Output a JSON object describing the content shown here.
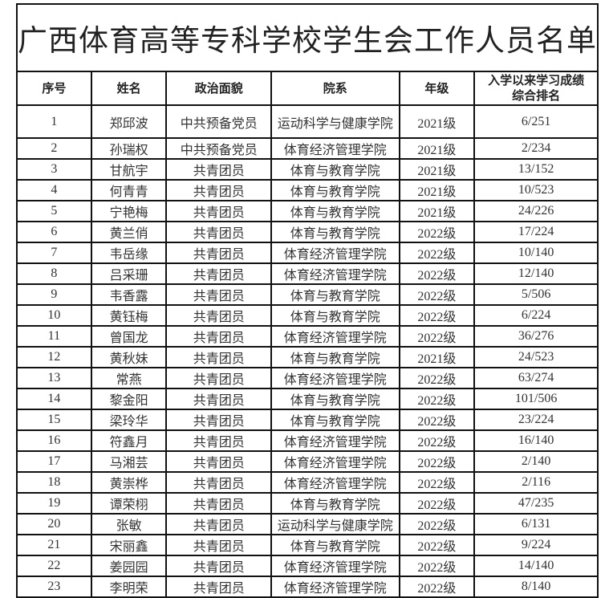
{
  "title": "广西体育高等专科学校学生会工作人员名单",
  "headers": [
    "序号",
    "姓名",
    "政治面貌",
    "院系",
    "年级",
    "入学以来学习成绩综合排名"
  ],
  "rows": [
    [
      "1",
      "郑邱波",
      "中共预备党员",
      "运动科学与健康学院",
      "2021级",
      "6/251"
    ],
    [
      "2",
      "孙瑞权",
      "中共预备党员",
      "体育经济管理学院",
      "2021级",
      "2/234"
    ],
    [
      "3",
      "甘航宇",
      "共青团员",
      "体育与教育学院",
      "2021级",
      "13/152"
    ],
    [
      "4",
      "何青青",
      "共青团员",
      "体育与教育学院",
      "2021级",
      "10/523"
    ],
    [
      "5",
      "宁艳梅",
      "共青团员",
      "体育与教育学院",
      "2021级",
      "24/226"
    ],
    [
      "6",
      "黄兰俏",
      "共青团员",
      "体育与教育学院",
      "2022级",
      "17/224"
    ],
    [
      "7",
      "韦岳缘",
      "共青团员",
      "体育经济管理学院",
      "2022级",
      "10/140"
    ],
    [
      "8",
      "吕采珊",
      "共青团员",
      "体育经济管理学院",
      "2022级",
      "12/140"
    ],
    [
      "9",
      "韦香露",
      "共青团员",
      "体育与教育学院",
      "2022级",
      "5/506"
    ],
    [
      "10",
      "黄钰梅",
      "共青团员",
      "体育与教育学院",
      "2022级",
      "6/224"
    ],
    [
      "11",
      "曾国龙",
      "共青团员",
      "体育经济管理学院",
      "2022级",
      "36/276"
    ],
    [
      "12",
      "黄秋妹",
      "共青团员",
      "体育与教育学院",
      "2021级",
      "24/523"
    ],
    [
      "13",
      "常燕",
      "共青团员",
      "体育经济管理学院",
      "2022级",
      "63/274"
    ],
    [
      "14",
      "黎金阳",
      "共青团员",
      "体育与教育学院",
      "2022级",
      "101/506"
    ],
    [
      "15",
      "梁玲华",
      "共青团员",
      "体育与教育学院",
      "2022级",
      "23/224"
    ],
    [
      "16",
      "符鑫月",
      "共青团员",
      "体育经济管理学院",
      "2022级",
      "16/140"
    ],
    [
      "17",
      "马湘芸",
      "共青团员",
      "体育经济管理学院",
      "2022级",
      "2/140"
    ],
    [
      "18",
      "黄崇桦",
      "共青团员",
      "体育经济管理学院",
      "2022级",
      "2/116"
    ],
    [
      "19",
      "谭荣栩",
      "共青团员",
      "体育与教育学院",
      "2022级",
      "47/235"
    ],
    [
      "20",
      "张敏",
      "共青团员",
      "运动科学与健康学院",
      "2022级",
      "6/131"
    ],
    [
      "21",
      "宋丽鑫",
      "共青团员",
      "体育与教育学院",
      "2022级",
      "9/224"
    ],
    [
      "22",
      "姜园园",
      "共青团员",
      "体育经济管理学院",
      "2022级",
      "14/140"
    ],
    [
      "23",
      "李明荣",
      "共青团员",
      "体育经济管理学院",
      "2022级",
      "8/140"
    ]
  ]
}
